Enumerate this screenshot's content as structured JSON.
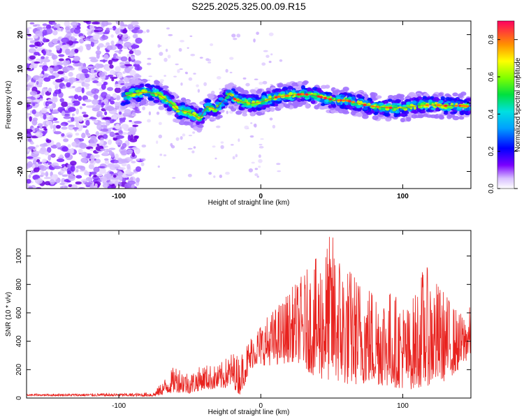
{
  "figure_title": "S225.2025.325.00.09.R15",
  "colors": {
    "snr_line": "#e8221e",
    "ridge": "#ff2020",
    "axis": "#000000"
  },
  "chart_data": [
    {
      "type": "heatmap",
      "title": "S225.2025.325.00.09.R15",
      "xlabel": "Height of straight line (km)",
      "ylabel": "Frequency (Hz)",
      "xlim": [
        -165,
        148
      ],
      "ylim": [
        -25,
        24
      ],
      "x_ticks": [
        -100,
        0,
        100
      ],
      "y_ticks": [
        -20,
        -10,
        0,
        10,
        20
      ],
      "colorbar": {
        "label": "Normalized spectral amplitude",
        "range": [
          0.0,
          0.9
        ],
        "ticks": [
          "0.0",
          "0.2",
          "0.4",
          "0.6",
          "0.8"
        ],
        "tick_values": [
          0.0,
          0.2,
          0.4,
          0.6,
          0.8
        ]
      },
      "ridge_track": {
        "x": [
          -97,
          -90,
          -80,
          -72,
          -65,
          -58,
          -50,
          -43,
          -38,
          -32,
          -26,
          -22,
          -18,
          -12,
          -6,
          0,
          6,
          12,
          20,
          28,
          36,
          44,
          52,
          60,
          68,
          76,
          84,
          92,
          100,
          110,
          120,
          130,
          140,
          148
        ],
        "freq": [
          1.8,
          2.8,
          3.2,
          2.5,
          0.5,
          -2,
          -2.8,
          -4.5,
          -1,
          -1.8,
          1,
          3,
          1,
          0.2,
          0,
          0.3,
          1.2,
          1.8,
          2.2,
          2.6,
          2.4,
          1.6,
          0.8,
          0.8,
          0,
          -0.8,
          -1.2,
          -1.4,
          -1.5,
          -0.8,
          -0.5,
          -0.8,
          -0.8,
          -1
        ]
      }
    },
    {
      "type": "line",
      "xlabel": "Height of straight line (km)",
      "ylabel": "SNR (10 * v/v)",
      "xlim": [
        -165,
        148
      ],
      "ylim": [
        0,
        1180
      ],
      "x_ticks": [
        -100,
        0,
        100
      ],
      "y_ticks": [
        0,
        200,
        400,
        600,
        800,
        1000
      ],
      "series": [
        {
          "name": "SNR",
          "envelope_x": [
            -165,
            -85,
            -75,
            -60,
            -50,
            -40,
            -30,
            -20,
            -15,
            -5,
            10,
            25,
            40,
            50,
            60,
            75,
            90,
            105,
            115,
            130,
            140,
            148
          ],
          "envelope_lo": [
            15,
            12,
            10,
            40,
            30,
            60,
            60,
            80,
            20,
            230,
            230,
            260,
            130,
            120,
            90,
            100,
            80,
            60,
            80,
            120,
            200,
            300
          ],
          "envelope_hi": [
            30,
            35,
            45,
            240,
            180,
            240,
            230,
            330,
            300,
            480,
            640,
            820,
            1000,
            1180,
            950,
            820,
            780,
            650,
            950,
            750,
            600,
            650
          ]
        }
      ]
    }
  ]
}
